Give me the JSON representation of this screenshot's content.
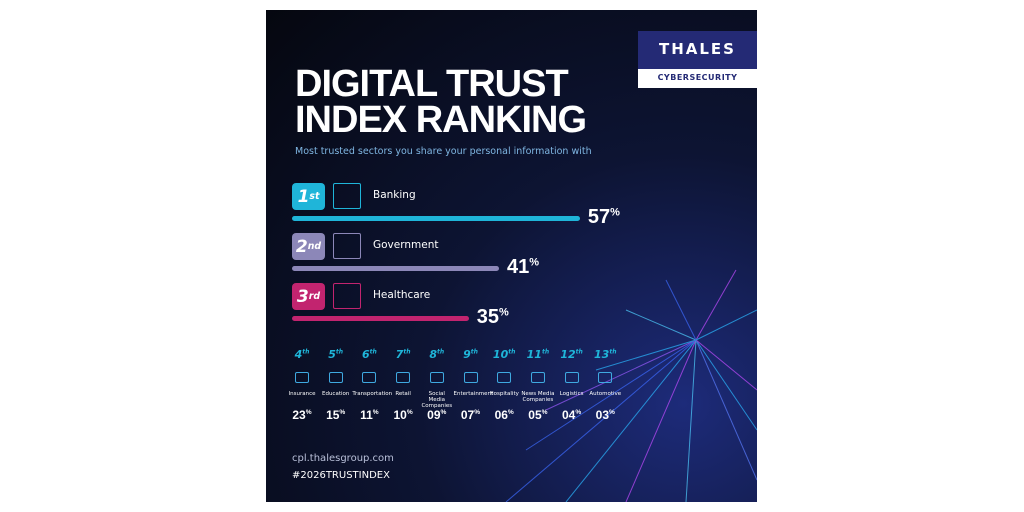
{
  "brand": {
    "name": "THALES",
    "tagline": "CYBERSECURITY"
  },
  "title": [
    "DIGITAL TRUST",
    "INDEX RANKING"
  ],
  "subtitle": "Most trusted sectors you share your personal information with",
  "unit": "%",
  "top": [
    {
      "rank": 1,
      "suffix": "st",
      "label": "Banking",
      "value": 57,
      "color": "#1fb5d9"
    },
    {
      "rank": 2,
      "suffix": "nd",
      "label": "Government",
      "value": 41,
      "color": "#8c87b8"
    },
    {
      "rank": 3,
      "suffix": "rd",
      "label": "Healthcare",
      "value": 35,
      "color": "#c2246f"
    }
  ],
  "others": [
    {
      "rank": 4,
      "suffix": "th",
      "label": "Insurance",
      "value": 23
    },
    {
      "rank": 5,
      "suffix": "th",
      "label": "Education",
      "value": 15
    },
    {
      "rank": 6,
      "suffix": "th",
      "label": "Transportation",
      "value": 11
    },
    {
      "rank": 7,
      "suffix": "th",
      "label": "Retail",
      "value": 10
    },
    {
      "rank": 8,
      "suffix": "th",
      "label": "Social Media Companies",
      "value": 9,
      "value_label": "09"
    },
    {
      "rank": 9,
      "suffix": "th",
      "label": "Entertainment",
      "value": 7,
      "value_label": "07"
    },
    {
      "rank": 10,
      "suffix": "th",
      "label": "Hospitality",
      "value": 6,
      "value_label": "06"
    },
    {
      "rank": 11,
      "suffix": "th",
      "label": "News Media Companies",
      "value": 5,
      "value_label": "05"
    },
    {
      "rank": 12,
      "suffix": "th",
      "label": "Logistics",
      "value": 4,
      "value_label": "04"
    },
    {
      "rank": 13,
      "suffix": "th",
      "label": "Automotive",
      "value": 3,
      "value_label": "03"
    }
  ],
  "footer": [
    "cpl.thalesgroup.com",
    "#2026TRUSTINDEX"
  ]
}
